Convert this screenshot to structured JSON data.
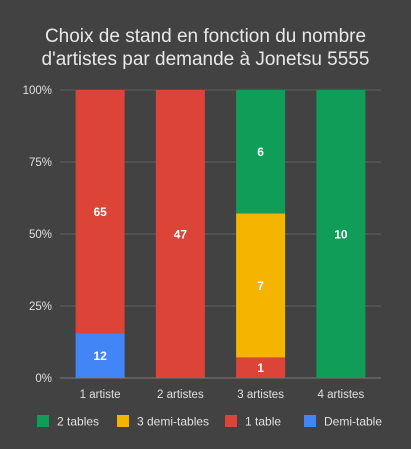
{
  "chart_data": {
    "type": "bar",
    "stacked": "percent",
    "title_lines": [
      "Choix de stand en fonction du nombre",
      "d'artistes par demande à Jonetsu 5555"
    ],
    "categories": [
      "1 artiste",
      "2 artistes",
      "3 artistes",
      "4 artistes"
    ],
    "y_ticks": [
      "0%",
      "25%",
      "50%",
      "75%",
      "100%"
    ],
    "ylim": [
      0,
      100
    ],
    "legend_position": "bottom",
    "grid": true,
    "series": [
      {
        "name": "Demi-table",
        "color": "#4285f4",
        "values": [
          12,
          0,
          0,
          0
        ]
      },
      {
        "name": "1 table",
        "color": "#db4437",
        "values": [
          65,
          47,
          1,
          0
        ]
      },
      {
        "name": "3 demi-tables",
        "color": "#f4b400",
        "values": [
          0,
          0,
          7,
          0
        ]
      },
      {
        "name": "2 tables",
        "color": "#0f9d58",
        "values": [
          0,
          0,
          6,
          10
        ]
      }
    ],
    "legend_order": [
      "2 tables",
      "3 demi-tables",
      "1 table",
      "Demi-table"
    ]
  }
}
